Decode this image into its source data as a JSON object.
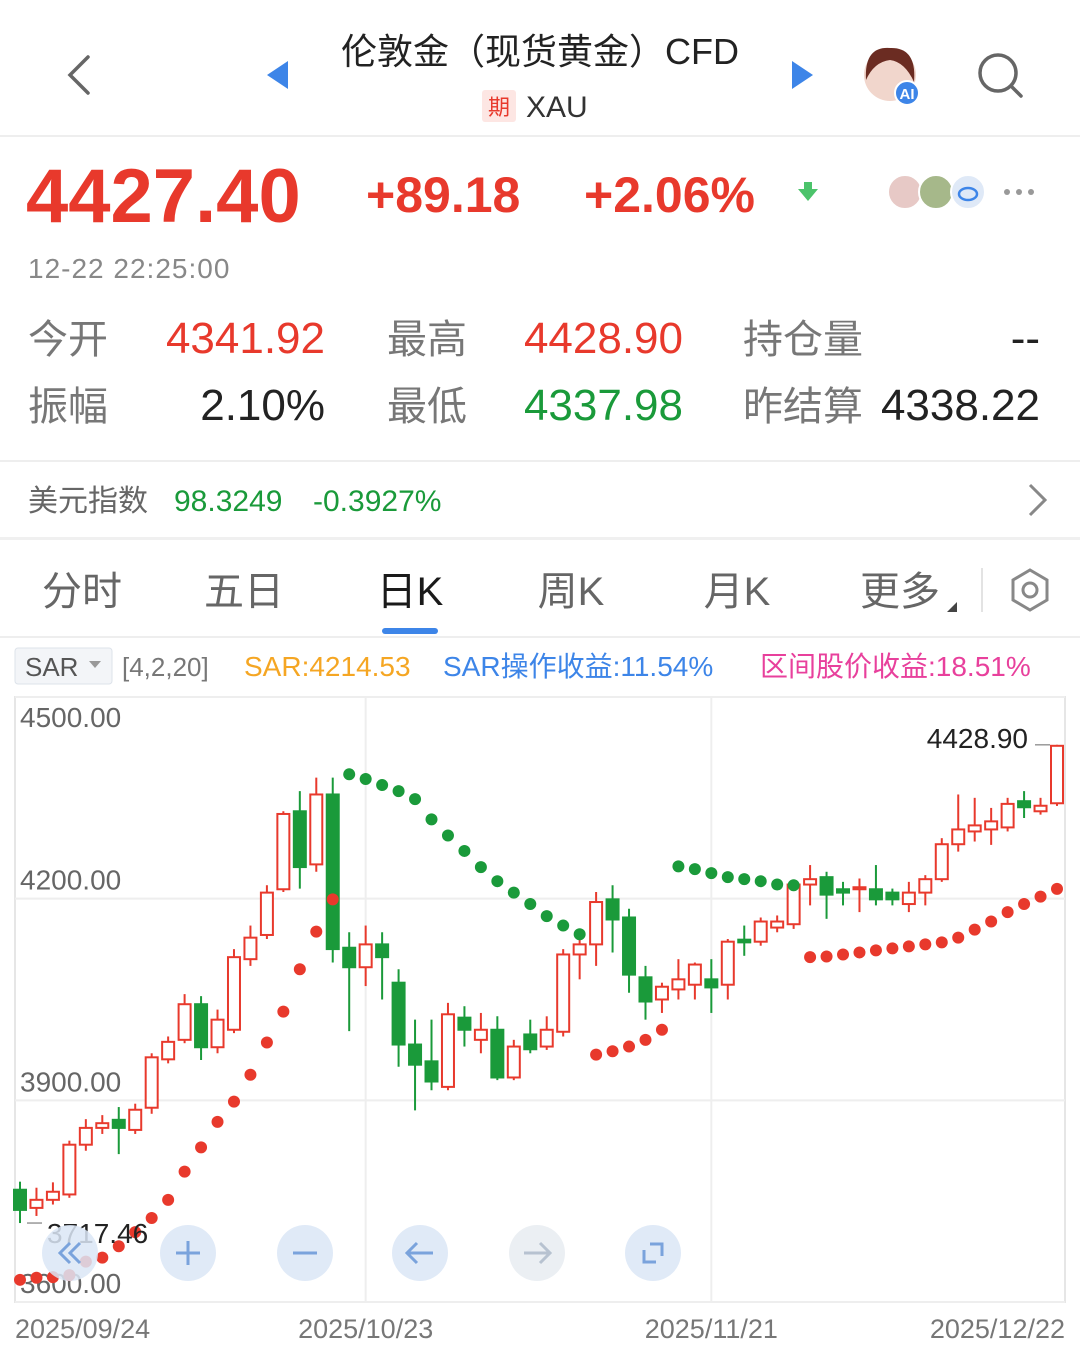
{
  "header": {
    "title": "伦敦金（现货黄金）CFD",
    "badge": "期",
    "symbol": "XAU",
    "ai_badge": "AI"
  },
  "quote": {
    "price": "4427.40",
    "change": "+89.18",
    "change_pct": "+2.06%",
    "time": "12-22 22:25:00"
  },
  "stats": [
    {
      "label": "今开",
      "value": "4341.92",
      "color": "#e8392c"
    },
    {
      "label": "最高",
      "value": "4428.90",
      "color": "#e8392c"
    },
    {
      "label": "持仓量",
      "value": "--",
      "color": "#222222"
    },
    {
      "label": "振幅",
      "value": "2.10%",
      "color": "#222222"
    },
    {
      "label": "最低",
      "value": "4337.98",
      "color": "#1a9a3a"
    },
    {
      "label": "昨结算",
      "value": "4338.22",
      "color": "#222222"
    }
  ],
  "index_bar": {
    "label": "美元指数",
    "value": "98.3249",
    "change": "-0.3927%",
    "color": "#1a9a3a"
  },
  "tabs": {
    "items": [
      "分时",
      "五日",
      "日K",
      "周K",
      "月K",
      "更多"
    ],
    "active": 2
  },
  "indicator": {
    "selector": "SAR",
    "params": "[4,2,20]",
    "readouts": [
      {
        "text": "SAR:4214.53",
        "color": "#f5a623"
      },
      {
        "text": "SAR操作收益:11.54%",
        "color": "#3d85e8"
      },
      {
        "text": "区间股价收益:18.51%",
        "color": "#e8409c"
      }
    ]
  },
  "chart_data": {
    "type": "candlestick",
    "categories": [
      "2025/09/24",
      null,
      null,
      null,
      null,
      null,
      null,
      null,
      null,
      null,
      null,
      null,
      null,
      null,
      null,
      null,
      null,
      null,
      null,
      null,
      null,
      "2025/10/23",
      null,
      null,
      null,
      null,
      null,
      null,
      null,
      null,
      null,
      null,
      null,
      null,
      null,
      null,
      null,
      null,
      null,
      null,
      null,
      null,
      "2025/11/21",
      null,
      null,
      null,
      null,
      null,
      null,
      null,
      null,
      null,
      null,
      null,
      null,
      null,
      null,
      null,
      null,
      null,
      null,
      null,
      null,
      "2025/12/22"
    ],
    "open": [
      3767,
      3740,
      3752,
      3760,
      3834,
      3859,
      3871,
      3856,
      3889,
      3961,
      3990,
      4043,
      3979,
      4005,
      4110,
      4146,
      4214,
      4330,
      4251,
      4355,
      4127,
      4098,
      4132,
      4075,
      3983,
      3958,
      3920,
      4023,
      3990,
      4005,
      3934,
      3998,
      3980,
      4002,
      4117,
      4132,
      4199,
      4172,
      4083,
      4050,
      4065,
      4072,
      4080,
      4072,
      4139,
      4136,
      4157,
      4162,
      4221,
      4232,
      4214,
      4214,
      4214,
      4209,
      4192,
      4209,
      4229,
      4281,
      4300,
      4303,
      4306,
      4345,
      4330,
      4341.92
    ],
    "high": [
      3779,
      3770,
      3778,
      3840,
      3872,
      3878,
      3890,
      3895,
      3970,
      3995,
      4058,
      4055,
      4035,
      4125,
      4160,
      4220,
      4330,
      4360,
      4380,
      4380,
      4150,
      4160,
      4150,
      4095,
      4020,
      4020,
      4045,
      4040,
      4030,
      4025,
      3990,
      4020,
      4025,
      4125,
      4150,
      4210,
      4220,
      4185,
      4100,
      4075,
      4110,
      4105,
      4110,
      4140,
      4160,
      4172,
      4175,
      4228,
      4250,
      4240,
      4225,
      4230,
      4250,
      4215,
      4225,
      4235,
      4290,
      4355,
      4350,
      4335,
      4350,
      4360,
      4350,
      4428.9
    ],
    "low": [
      3717.46,
      3728,
      3745,
      3755,
      3825,
      3850,
      3820,
      3850,
      3880,
      3955,
      3985,
      3960,
      3970,
      4000,
      4100,
      4140,
      4210,
      4215,
      4240,
      4105,
      4003,
      4070,
      4050,
      3950,
      3885,
      3915,
      3915,
      3980,
      3970,
      3930,
      3930,
      3970,
      3975,
      3995,
      4080,
      4100,
      4120,
      4060,
      4020,
      4030,
      4050,
      4050,
      4030,
      4050,
      4115,
      4130,
      4150,
      4155,
      4190,
      4170,
      4190,
      4180,
      4190,
      4190,
      4180,
      4190,
      4225,
      4270,
      4285,
      4280,
      4300,
      4320,
      4325,
      4337.98
    ],
    "close": [
      3737,
      3752,
      3764,
      3834,
      3859,
      3866,
      3859,
      3886,
      3964,
      3987,
      4043,
      3979,
      4020,
      4113,
      4142,
      4209,
      4326,
      4247,
      4355,
      4125,
      4098,
      4132,
      4113,
      3983,
      3953,
      3928,
      4028,
      4005,
      4005,
      3934,
      3980,
      3976,
      4005,
      4117,
      4132,
      4195,
      4169,
      4087,
      4047,
      4069,
      4080,
      4102,
      4068,
      4136,
      4135,
      4166,
      4166,
      4221,
      4229,
      4206,
      4209,
      4217,
      4199,
      4199,
      4209,
      4229,
      4281,
      4303,
      4309,
      4315,
      4341,
      4336,
      4338.22,
      4427.4
    ],
    "up_color": "#e8392c",
    "down_color": "#1a9a3a",
    "sar": {
      "values": [
        3633,
        3636,
        3637,
        3640,
        3660,
        3666,
        3683,
        3704,
        3725,
        3752,
        3794,
        3830,
        3868,
        3898,
        3938,
        3986,
        4032,
        4095,
        4151,
        4199,
        4385,
        4378,
        4369,
        4360,
        4348,
        4318,
        4294,
        4271,
        4247,
        4226,
        4209,
        4192,
        4174,
        4160,
        4147,
        3968,
        3973,
        3980,
        3990,
        4005,
        4248,
        4244,
        4238,
        4232,
        4229,
        4226,
        4221,
        4220,
        4113,
        4114,
        4117,
        4120,
        4123,
        4126,
        4129,
        4132,
        4135,
        4142,
        4154,
        4166,
        4180,
        4192,
        4203,
        4214.53
      ],
      "colors": [
        "#e8392c",
        "#e8392c",
        "#e8392c",
        "#e8392c",
        "#e8392c",
        "#e8392c",
        "#e8392c",
        "#e8392c",
        "#e8392c",
        "#e8392c",
        "#e8392c",
        "#e8392c",
        "#e8392c",
        "#e8392c",
        "#e8392c",
        "#e8392c",
        "#e8392c",
        "#e8392c",
        "#e8392c",
        "#e8392c",
        "#1a9a3a",
        "#1a9a3a",
        "#1a9a3a",
        "#1a9a3a",
        "#1a9a3a",
        "#1a9a3a",
        "#1a9a3a",
        "#1a9a3a",
        "#1a9a3a",
        "#1a9a3a",
        "#1a9a3a",
        "#1a9a3a",
        "#1a9a3a",
        "#1a9a3a",
        "#1a9a3a",
        "#e8392c",
        "#e8392c",
        "#e8392c",
        "#e8392c",
        "#e8392c",
        "#1a9a3a",
        "#1a9a3a",
        "#1a9a3a",
        "#1a9a3a",
        "#1a9a3a",
        "#1a9a3a",
        "#1a9a3a",
        "#1a9a3a",
        "#e8392c",
        "#e8392c",
        "#e8392c",
        "#e8392c",
        "#e8392c",
        "#e8392c",
        "#e8392c",
        "#e8392c",
        "#e8392c",
        "#e8392c",
        "#e8392c",
        "#e8392c",
        "#e8392c",
        "#e8392c",
        "#e8392c",
        "#e8392c"
      ]
    },
    "ylim": [
      3600,
      4500
    ],
    "yticks": [
      {
        "value": 4500,
        "label": "4500.00"
      },
      {
        "value": 4200,
        "label": "4200.00"
      },
      {
        "value": 3900,
        "label": "3900.00"
      },
      {
        "value": 3600,
        "label": "3600.00"
      }
    ],
    "annotations": [
      {
        "value": 4428.9,
        "label": "4428.90"
      },
      {
        "value": 3717.46,
        "label": "3717.46"
      }
    ],
    "grid": true
  }
}
